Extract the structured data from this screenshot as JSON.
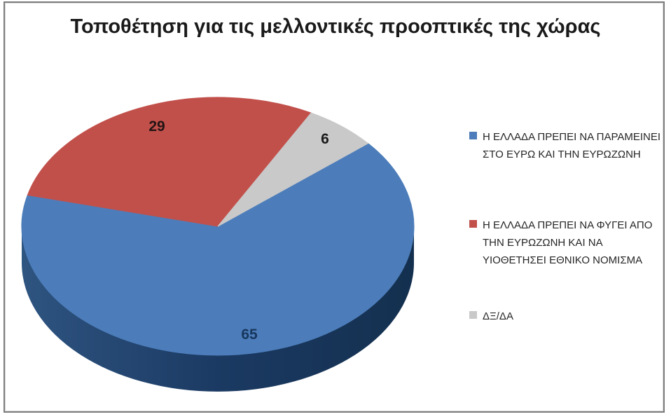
{
  "chart_data": {
    "type": "pie",
    "style": "3d",
    "title": "Τοποθέτηση για τις μελλοντικές προοπτικές της χώρας",
    "legend_position": "right",
    "values_are": "percent",
    "total": 100,
    "start_angle_deg_cw_from_north": 50,
    "direction": "clockwise",
    "slices": [
      {
        "label": "Η ΕΛΛΑΔΑ ΠΡΕΠΕΙ ΝΑ ΠΑΡΑΜΕΙΝΕΙ ΣΤΟ ΕΥΡΩ ΚΑΙ ΤΗΝ ΕΥΡΩΖΩΝΗ",
        "value": 65,
        "color": "#4C7DBA",
        "label_color": "#17375E"
      },
      {
        "label": "Η ΕΛΛΑΔΑ ΠΡΕΠΕΙ ΝΑ ΦΥΓΕΙ ΑΠΟ ΤΗΝ ΕΥΡΩΖΩΝΗ ΚΑΙ ΝΑ ΥΙΟΘΕΤΗΣΕΙ ΕΘΝΙΚΟ ΝΟΜΙΣΜΑ",
        "value": 29,
        "color": "#C1504B",
        "label_color": "#231414"
      },
      {
        "label": "ΔΞ/ΔΑ",
        "value": 6,
        "color": "#C9C9C9",
        "label_color": "#1A1A1A"
      }
    ],
    "side_gradient": [
      "#2E5480",
      "#1B3A63",
      "#14304F"
    ]
  }
}
